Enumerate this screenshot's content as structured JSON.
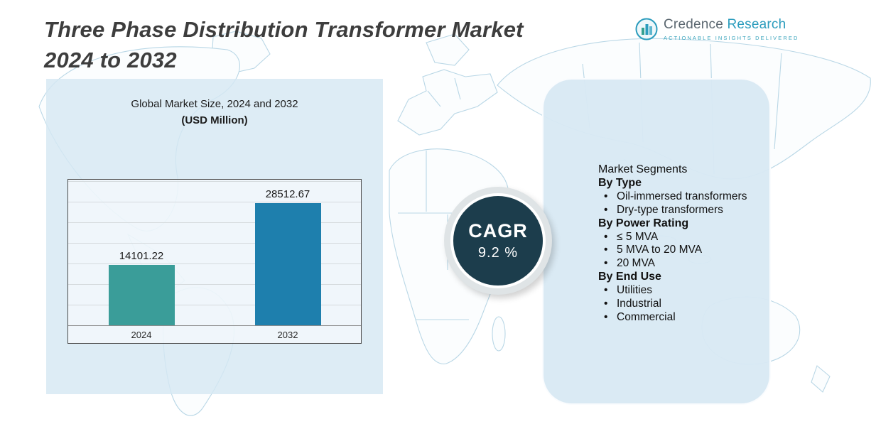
{
  "header": {
    "title_line1": "Three Phase Distribution Transformer Market",
    "title_line2": "2024 to 2032"
  },
  "logo": {
    "brand_part1": "Credence",
    "brand_part2": " Research",
    "tagline": "Actionable Insights Delivered"
  },
  "chart_data": {
    "type": "bar",
    "title": "Global Market Size, 2024 and 2032",
    "subtitle": "(USD Million)",
    "categories": [
      "2024",
      "2032"
    ],
    "values": [
      14101.22,
      28512.67
    ],
    "data_labels": [
      "14101.22",
      "28512.67"
    ],
    "bar_colors": [
      "#3A9D99",
      "#1E7FAD"
    ],
    "ylabel": "",
    "xlabel": "",
    "ylim": [
      0,
      30000
    ],
    "grid": true,
    "legend": "none"
  },
  "cagr": {
    "label": "CAGR",
    "value": "9.2 %"
  },
  "segments": {
    "title": "Market Segments",
    "groups": [
      {
        "heading": "By Type",
        "items": [
          "Oil-immersed transformers",
          "Dry-type transformers"
        ]
      },
      {
        "heading": "By Power Rating",
        "items": [
          "≤ 5 MVA",
          "5 MVA to 20 MVA",
          "20 MVA"
        ]
      },
      {
        "heading": "By End Use",
        "items": [
          "Utilities",
          "Industrial",
          "Commercial"
        ]
      }
    ]
  },
  "colors": {
    "bar_2024": "#3A9D99",
    "bar_2032": "#1E7FAD",
    "cagr_circle": "#1C3D4C",
    "panel_background": "#D8E9F3",
    "map_outline": "#B9D7E6"
  }
}
